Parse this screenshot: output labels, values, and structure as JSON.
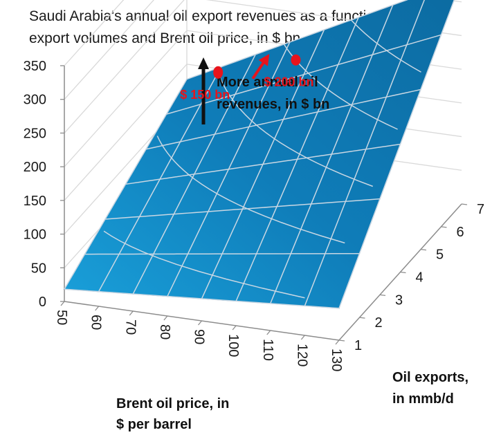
{
  "chart_data": {
    "type": "surface",
    "title_lines": [
      "Saudi Arabia's annual oil export revenues as a function of",
      "export volumes and Brent oil price, in $ bn"
    ],
    "x_axis": {
      "title_lines": [
        "Brent oil price, in",
        "$ per barrel"
      ],
      "ticks": [
        "50",
        "60",
        "70",
        "80",
        "90",
        "100",
        "110",
        "120",
        "130"
      ],
      "range": [
        50,
        130
      ]
    },
    "y_axis": {
      "title_lines": [
        "Oil exports,",
        "in mmb/d"
      ],
      "ticks": [
        "1",
        "2",
        "3",
        "4",
        "5",
        "6",
        "7"
      ],
      "range": [
        1,
        7
      ]
    },
    "z_axis": {
      "ticks": [
        "0",
        "50",
        "100",
        "150",
        "200",
        "250",
        "300",
        "350"
      ],
      "range": [
        0,
        350
      ]
    },
    "surface_formula": "revenue_bn = price_usd_per_bbl * exports_mmbd * 0.365",
    "annotations": {
      "arrow_label_lines": [
        "More annual oil",
        "revenues, in $ bn"
      ],
      "points": [
        {
          "label": "$ 150 bn",
          "price": 60,
          "exports": 6.85,
          "revenue": 150
        },
        {
          "label": "$ 200 bn",
          "price": 85,
          "exports": 6.45,
          "revenue": 200
        }
      ]
    }
  },
  "colors": {
    "surface": "#0f7db9",
    "surface_edge": "#0a5f8c",
    "mesh": "#c9d7e3",
    "back_grid": "#d9d9d9",
    "axis": "#8c8c8c",
    "marker": "#e8141c",
    "text": "#111111"
  }
}
